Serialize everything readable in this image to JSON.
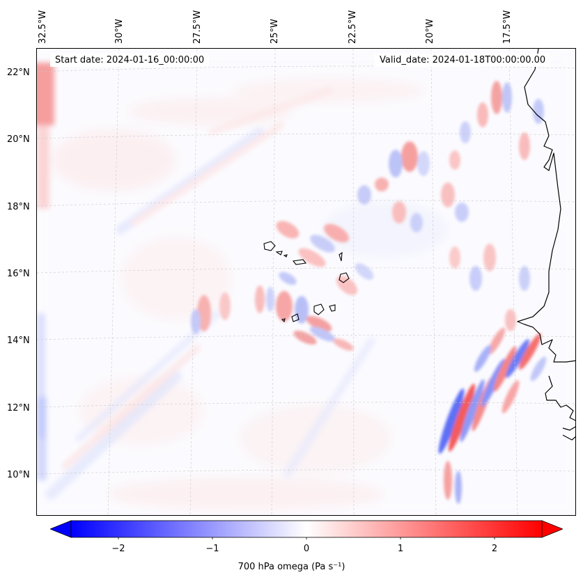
{
  "map": {
    "info": {
      "start_date": "Start date: 2024-01-16_00:00:00",
      "valid_date": "Valid_date: 2024-01-18T00:00:00.00"
    },
    "top_longitude_labels": [
      "32.5°W",
      "30°W",
      "27.5°W",
      "25°W",
      "22.5°W",
      "20°W",
      "17.5°W"
    ],
    "latitude_labels": [
      "22°N",
      "20°N",
      "18°N",
      "16°N",
      "14°N",
      "12°N",
      "10°N"
    ],
    "colorbar": {
      "label": "700 hPa omega (Pa s⁻¹)",
      "ticks": [
        "−2",
        "−1",
        "0",
        "1",
        "2"
      ],
      "min": -2.5,
      "max": 2.5,
      "cmap": "bwr",
      "low_color": "#0000ff",
      "mid_color": "#ffffff",
      "high_color": "#ff0000"
    },
    "gridlines": "dashed"
  }
}
